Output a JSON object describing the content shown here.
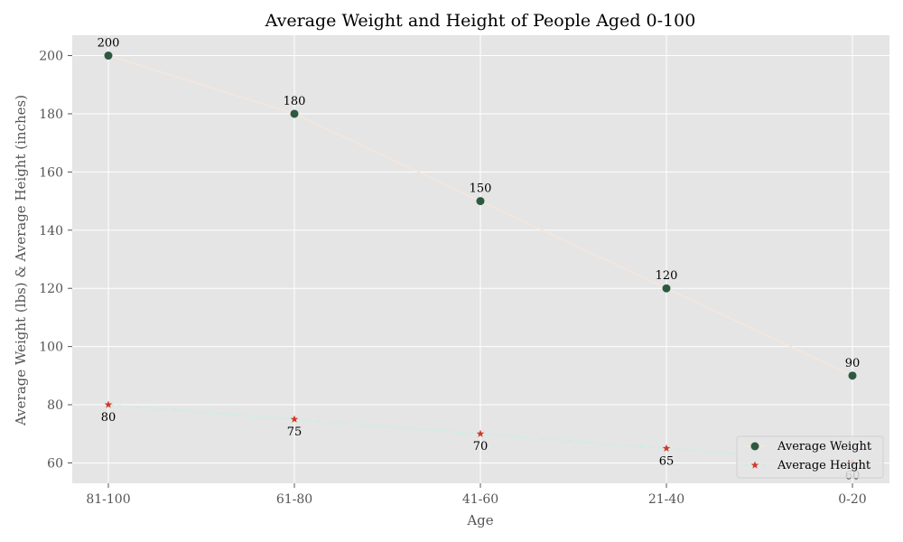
{
  "chart_data": {
    "type": "line",
    "title": "Average Weight and Height of People Aged 0-100",
    "xlabel": "Age",
    "ylabel": "Average Weight (lbs) & Average Height (inches)",
    "categories": [
      "81-100",
      "61-80",
      "41-60",
      "21-40",
      "0-20"
    ],
    "series": [
      {
        "name": "Average Weight",
        "values": [
          200,
          180,
          150,
          120,
          90
        ],
        "line_color": "#f5e6dc",
        "marker_color": "#2e5940",
        "marker": "circle",
        "line_style": "solid",
        "label_position": "above"
      },
      {
        "name": "Average Height",
        "values": [
          80,
          75,
          70,
          65,
          60
        ],
        "line_color": "#c9efe3",
        "marker_color": "#d13a2a",
        "marker": "star",
        "line_style": "dashed",
        "label_position": "below"
      }
    ],
    "ylim": [
      53,
      207
    ],
    "yticks": [
      60,
      80,
      100,
      120,
      140,
      160,
      180,
      200
    ],
    "grid": true,
    "legend_position": "lower-right",
    "background": "#e5e5e5",
    "grid_color": "#ffffff"
  }
}
